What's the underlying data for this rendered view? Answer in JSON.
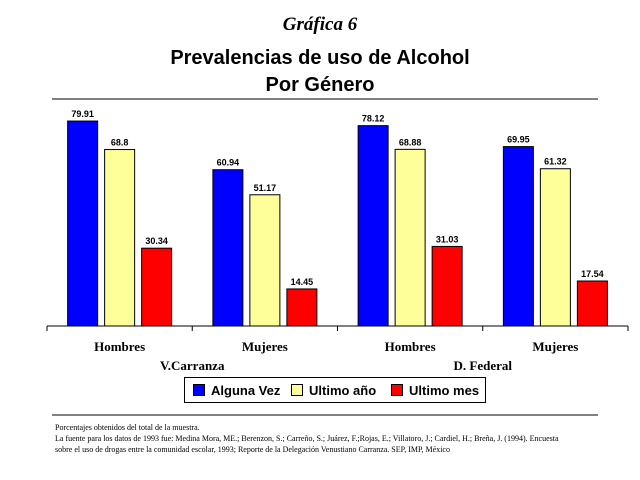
{
  "header": {
    "kicker": "Gráfica 6",
    "title_line1": "Prevalencias de uso de Alcohol",
    "title_line2": "Por Género"
  },
  "chart_data": {
    "type": "bar",
    "categories": [
      "Hombres",
      "Mujeres",
      "Hombres",
      "Mujeres"
    ],
    "groups": [
      "V.Carranza",
      "D. Federal"
    ],
    "series": [
      {
        "name": "Alguna Vez",
        "color": "#0000ff",
        "values": [
          79.91,
          60.94,
          78.12,
          69.95
        ]
      },
      {
        "name": "Ultimo año",
        "color": "#ffff99",
        "values": [
          68.8,
          51.17,
          68.88,
          61.32
        ]
      },
      {
        "name": "Ultimo mes",
        "color": "#ff0000",
        "values": [
          30.34,
          14.45,
          31.03,
          17.54
        ]
      }
    ],
    "ylim": [
      0,
      85
    ],
    "grid": false,
    "legend_position": "bottom"
  },
  "legend": {
    "items": [
      {
        "label": "Alguna Vez",
        "color": "#0000ff"
      },
      {
        "label": "Ultimo año",
        "color": "#ffff99"
      },
      {
        "label": "Ultimo mes",
        "color": "#ff0000"
      }
    ]
  },
  "notes": {
    "line1": "Porcentajes obtenidos del total de la muestra.",
    "line2": "La fuente para los datos de 1993 fue: Medina Mora, ME.; Berenzon, S.; Carreño, S.; Juárez, F.;Rojas, E.; Villatoro, J.; Cardiel, H.; Breña, J. (1994). Encuesta",
    "line3": "sobre el uso de drogas entre la comunidad escolar, 1993; Reporte de la Delegación Venustiano Carranza. SEP, IMP, México"
  }
}
